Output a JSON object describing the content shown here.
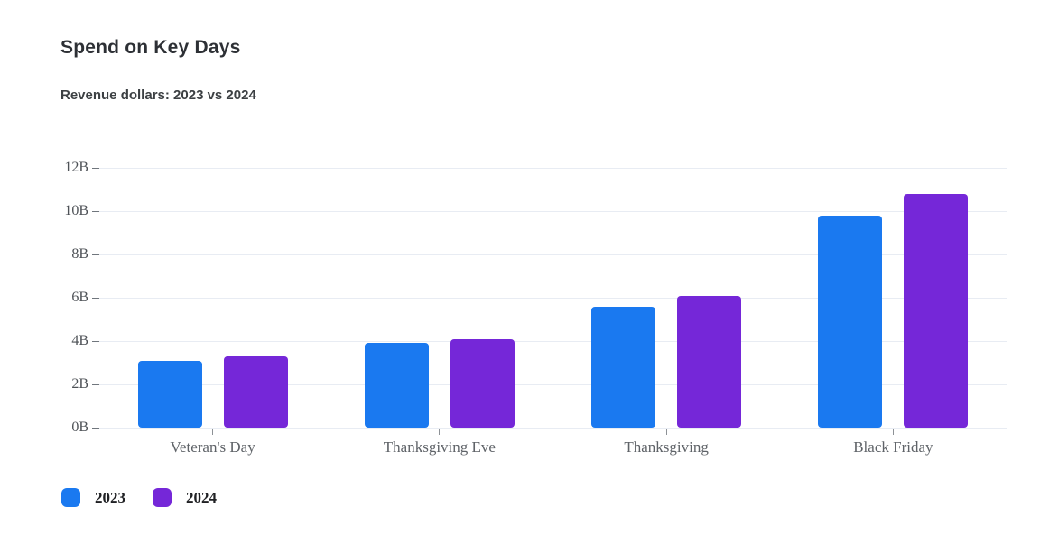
{
  "header": {
    "title": "Spend on Key Days",
    "subtitle": "Revenue dollars: 2023 vs 2024"
  },
  "chart_data": {
    "type": "bar",
    "title": "Spend on Key Days",
    "subtitle": "Revenue dollars: 2023 vs 2024",
    "categories": [
      "Veteran's Day",
      "Thanksgiving Eve",
      "Thanksgiving",
      "Black Friday"
    ],
    "series": [
      {
        "name": "2023",
        "color": "#1a79f0",
        "values": [
          3.1,
          3.9,
          5.6,
          9.8
        ]
      },
      {
        "name": "2024",
        "color": "#7527d8",
        "values": [
          3.3,
          4.1,
          6.1,
          10.8
        ]
      }
    ],
    "unit": "B",
    "ylim": [
      0,
      12
    ],
    "ytick_values": [
      0,
      2,
      4,
      6,
      8,
      10,
      12
    ],
    "ytick_labels": [
      "0B",
      "2B",
      "4B",
      "6B",
      "8B",
      "10B",
      "12B"
    ],
    "grid": true,
    "gridline_color": "#e8ecf3",
    "legend_position": "bottom-left",
    "legend_labels": [
      "2023",
      "2024"
    ]
  }
}
